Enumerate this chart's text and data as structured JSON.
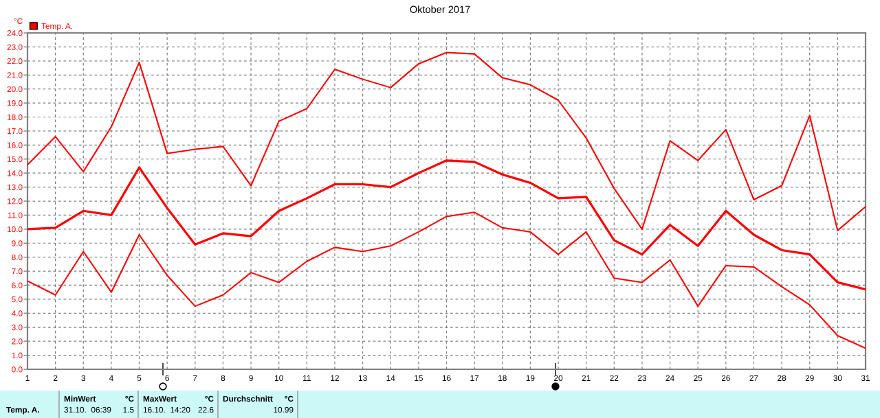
{
  "chart_data": [
    {
      "type": "line",
      "title": "Oktober 2017",
      "ylabel": "°C",
      "x": [
        1,
        2,
        3,
        4,
        5,
        6,
        7,
        8,
        9,
        10,
        11,
        12,
        13,
        14,
        15,
        16,
        17,
        18,
        19,
        20,
        21,
        22,
        23,
        24,
        25,
        26,
        27,
        28,
        29,
        30,
        31
      ],
      "xlim": [
        1,
        31
      ],
      "xticks": [
        1,
        2,
        3,
        4,
        5,
        6,
        7,
        8,
        9,
        10,
        11,
        12,
        13,
        14,
        15,
        16,
        17,
        18,
        19,
        20,
        21,
        22,
        23,
        24,
        25,
        26,
        27,
        28,
        29,
        30,
        31
      ],
      "ylim": [
        0,
        24
      ],
      "yticks": [
        {
          "value": 0,
          "label": "0.0"
        },
        {
          "value": 1,
          "label": "1.0"
        },
        {
          "value": 2,
          "label": "2.0"
        },
        {
          "value": 3,
          "label": "3.0"
        },
        {
          "value": 4,
          "label": "4.0"
        },
        {
          "value": 5,
          "label": "5.0"
        },
        {
          "value": 6,
          "label": "6.0"
        },
        {
          "value": 7,
          "label": "7.0"
        },
        {
          "value": 8,
          "label": "8.0"
        },
        {
          "value": 9,
          "label": "9.0"
        },
        {
          "value": 10,
          "label": "10.0"
        },
        {
          "value": 11,
          "label": "11.0"
        },
        {
          "value": 12,
          "label": "12.0"
        },
        {
          "value": 13,
          "label": "13.0"
        },
        {
          "value": 14,
          "label": "14.0"
        },
        {
          "value": 15,
          "label": "15.0"
        },
        {
          "value": 16,
          "label": "16.0"
        },
        {
          "value": 17,
          "label": "17.0"
        },
        {
          "value": 18,
          "label": "18.0"
        },
        {
          "value": 19,
          "label": "19.0"
        },
        {
          "value": 20,
          "label": "20.0"
        },
        {
          "value": 21,
          "label": "21.0"
        },
        {
          "value": 22,
          "label": "22.0"
        },
        {
          "value": 23,
          "label": "23.0"
        },
        {
          "value": 24,
          "label": "24.0"
        }
      ],
      "grid": true,
      "legend": "top left",
      "line_style": "solid",
      "series": [
        {
          "color": "#ff0000",
          "values": [
            14.6,
            16.6,
            14.1,
            17.3,
            21.9,
            15.4,
            15.7,
            15.9,
            13.1,
            17.7,
            18.6,
            21.4,
            20.7,
            20.1,
            21.8,
            22.6,
            22.5,
            20.8,
            20.3,
            19.2,
            16.5,
            12.9,
            10.0,
            16.3,
            14.9,
            17.1,
            12.1,
            13.1,
            18.1,
            9.9,
            11.6
          ]
        },
        {
          "name": "Temp. A.",
          "color": "#ff0000",
          "values": [
            10.0,
            10.1,
            11.3,
            11.0,
            14.4,
            11.5,
            8.9,
            9.7,
            9.5,
            11.3,
            12.2,
            13.2,
            13.2,
            13.0,
            14.0,
            14.9,
            14.8,
            13.9,
            13.3,
            12.2,
            12.3,
            9.2,
            8.2,
            10.3,
            8.8,
            11.3,
            9.6,
            8.5,
            8.2,
            6.2,
            5.7
          ]
        },
        {
          "color": "#ff0000",
          "values": [
            6.3,
            5.3,
            8.4,
            5.5,
            9.6,
            6.7,
            4.5,
            5.3,
            6.9,
            6.2,
            7.7,
            8.7,
            8.4,
            8.8,
            9.8,
            10.9,
            11.2,
            10.1,
            9.8,
            8.2,
            9.8,
            6.5,
            6.2,
            7.8,
            4.5,
            7.4,
            7.3,
            5.9,
            4.6,
            2.4,
            1.5
          ]
        }
      ]
    },
    {
      "type": "other",
      "annotations": [
        "Temp. A.",
        "MinWert",
        "°C",
        "31.10.  06:39",
        "1.5",
        "MaxWert",
        "°C",
        "16.10.  14:20",
        "22.6",
        "Durchschnitt",
        "°C",
        "10.99"
      ]
    }
  ]
}
